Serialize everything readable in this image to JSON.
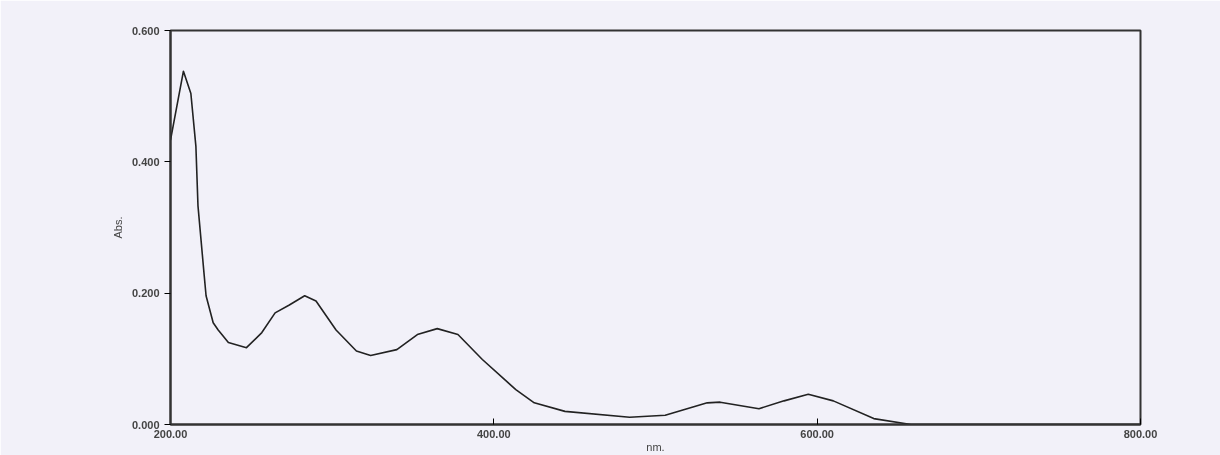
{
  "chart_data": {
    "type": "line",
    "xlabel": "nm.",
    "ylabel": "Abs.",
    "x": [
      200,
      208,
      212.6,
      215.7,
      217,
      220.7,
      222,
      226.4,
      229.5,
      235.8,
      247,
      256.5,
      264.7,
      273.5,
      283,
      290,
      302.4,
      315,
      323.8,
      340,
      352.7,
      365,
      377.8,
      392.9,
      413.6,
      425,
      444,
      484,
      506,
      532,
      540,
      564,
      579.5,
      594.5,
      610,
      635,
      658,
      700,
      800
    ],
    "series": [
      {
        "color": "#222222",
        "values": [
          0.433,
          0.538,
          0.504,
          0.424,
          0.333,
          0.231,
          0.196,
          0.155,
          0.144,
          0.125,
          0.117,
          0.14,
          0.17,
          0.182,
          0.196,
          0.188,
          0.144,
          0.112,
          0.105,
          0.114,
          0.137,
          0.146,
          0.137,
          0.099,
          0.053,
          0.033,
          0.02,
          0.011,
          0.014,
          0.033,
          0.034,
          0.024,
          0.036,
          0.046,
          0.036,
          0.009,
          0.0,
          0.0,
          0.0
        ]
      }
    ],
    "xlim": [
      200,
      800
    ],
    "ylim": [
      0,
      0.6
    ],
    "xticks": [
      {
        "value": 200,
        "label": "200.00"
      },
      {
        "value": 400,
        "label": "400.00"
      },
      {
        "value": 600,
        "label": "600.00"
      },
      {
        "value": 800,
        "label": "800.00"
      }
    ],
    "yticks": [
      {
        "value": 0,
        "label": "0.000"
      },
      {
        "value": 0.2,
        "label": "0.200"
      },
      {
        "value": 0.4,
        "label": "0.400"
      },
      {
        "value": 0.6,
        "label": "0.600"
      }
    ],
    "grid": false,
    "marker": "none",
    "line_style": "solid"
  }
}
